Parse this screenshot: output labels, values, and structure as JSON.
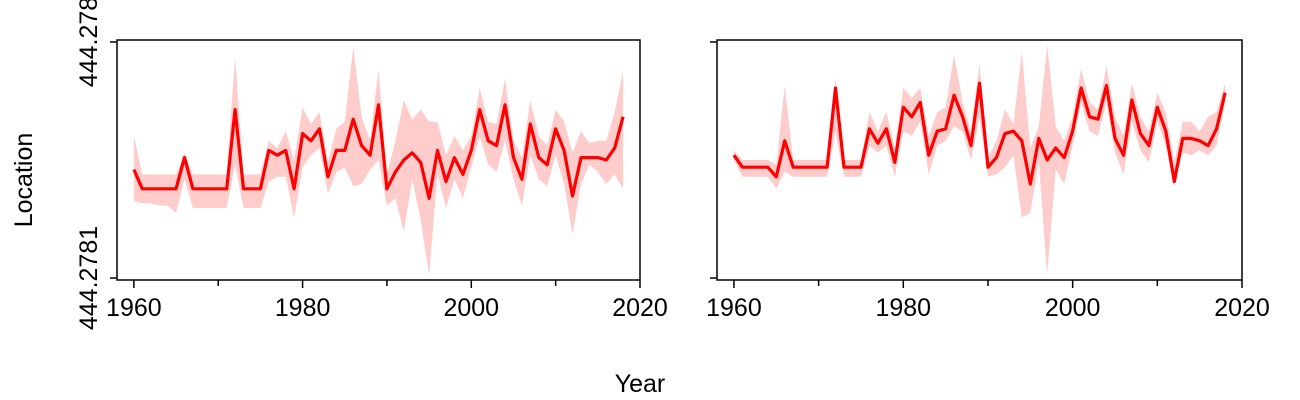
{
  "chart_data": {
    "type": "line",
    "xlabel": "Year",
    "ylabel": "Location",
    "x_ticks": [
      "1960",
      "1980",
      "2000",
      "2020"
    ],
    "y_ticks": [
      "444.2781",
      "444.278"
    ],
    "xlim": [
      1958,
      2020
    ],
    "ylim": [
      0,
      1
    ],
    "grid": false,
    "colors": {
      "line": "#ff0000",
      "band": "#ffcccc"
    },
    "panels": [
      {
        "x": [
          1960,
          1961,
          1962,
          1963,
          1964,
          1965,
          1966,
          1967,
          1968,
          1969,
          1970,
          1971,
          1972,
          1973,
          1974,
          1975,
          1976,
          1977,
          1978,
          1979,
          1980,
          1981,
          1982,
          1983,
          1984,
          1985,
          1986,
          1987,
          1988,
          1989,
          1990,
          1991,
          1992,
          1993,
          1994,
          1995,
          1996,
          1997,
          1998,
          1999,
          2000,
          2001,
          2002,
          2003,
          2004,
          2005,
          2006,
          2007,
          2008,
          2009,
          2010,
          2011,
          2012,
          2013,
          2014,
          2015,
          2016,
          2017,
          2018
        ],
        "y": [
          0.46,
          0.38,
          0.38,
          0.38,
          0.38,
          0.38,
          0.51,
          0.38,
          0.38,
          0.38,
          0.38,
          0.38,
          0.71,
          0.38,
          0.38,
          0.38,
          0.54,
          0.52,
          0.54,
          0.38,
          0.61,
          0.58,
          0.63,
          0.43,
          0.54,
          0.54,
          0.67,
          0.56,
          0.52,
          0.73,
          0.38,
          0.45,
          0.5,
          0.53,
          0.49,
          0.34,
          0.54,
          0.41,
          0.51,
          0.44,
          0.54,
          0.71,
          0.58,
          0.56,
          0.73,
          0.51,
          0.42,
          0.65,
          0.51,
          0.48,
          0.63,
          0.54,
          0.35,
          0.51,
          0.51,
          0.51,
          0.5,
          0.55,
          0.68
        ],
        "lower": [
          0.33,
          0.32,
          0.32,
          0.31,
          0.31,
          0.28,
          0.42,
          0.3,
          0.3,
          0.3,
          0.3,
          0.3,
          0.48,
          0.3,
          0.3,
          0.3,
          0.41,
          0.43,
          0.43,
          0.26,
          0.47,
          0.52,
          0.55,
          0.36,
          0.45,
          0.47,
          0.39,
          0.4,
          0.46,
          0.5,
          0.31,
          0.34,
          0.2,
          0.42,
          0.25,
          0.02,
          0.44,
          0.3,
          0.42,
          0.34,
          0.47,
          0.6,
          0.48,
          0.45,
          0.58,
          0.42,
          0.31,
          0.52,
          0.42,
          0.39,
          0.52,
          0.4,
          0.19,
          0.4,
          0.48,
          0.45,
          0.4,
          0.44,
          0.38
        ],
        "upper": [
          0.6,
          0.44,
          0.44,
          0.44,
          0.44,
          0.44,
          0.53,
          0.44,
          0.44,
          0.44,
          0.44,
          0.44,
          0.93,
          0.44,
          0.44,
          0.44,
          0.58,
          0.55,
          0.62,
          0.5,
          0.72,
          0.65,
          0.7,
          0.49,
          0.63,
          0.66,
          0.97,
          0.68,
          0.58,
          0.88,
          0.44,
          0.58,
          0.75,
          0.67,
          0.71,
          0.66,
          0.66,
          0.52,
          0.6,
          0.54,
          0.6,
          0.8,
          0.66,
          0.65,
          0.84,
          0.58,
          0.51,
          0.75,
          0.6,
          0.56,
          0.71,
          0.66,
          0.53,
          0.62,
          0.57,
          0.58,
          0.58,
          0.7,
          0.87
        ]
      },
      {
        "x": [
          1960,
          1961,
          1962,
          1963,
          1964,
          1965,
          1966,
          1967,
          1968,
          1969,
          1970,
          1971,
          1972,
          1973,
          1974,
          1975,
          1976,
          1977,
          1978,
          1979,
          1980,
          1981,
          1982,
          1983,
          1984,
          1985,
          1986,
          1987,
          1988,
          1989,
          1990,
          1991,
          1992,
          1993,
          1994,
          1995,
          1996,
          1997,
          1998,
          1999,
          2000,
          2001,
          2002,
          2003,
          2004,
          2005,
          2006,
          2007,
          2008,
          2009,
          2010,
          2011,
          2012,
          2013,
          2014,
          2015,
          2016,
          2017,
          2018
        ],
        "y": [
          0.52,
          0.47,
          0.47,
          0.47,
          0.47,
          0.43,
          0.58,
          0.47,
          0.47,
          0.47,
          0.47,
          0.47,
          0.8,
          0.47,
          0.47,
          0.47,
          0.63,
          0.57,
          0.63,
          0.49,
          0.72,
          0.68,
          0.74,
          0.52,
          0.62,
          0.63,
          0.77,
          0.68,
          0.56,
          0.82,
          0.47,
          0.51,
          0.61,
          0.62,
          0.58,
          0.4,
          0.59,
          0.5,
          0.55,
          0.51,
          0.62,
          0.8,
          0.68,
          0.67,
          0.81,
          0.59,
          0.52,
          0.75,
          0.61,
          0.56,
          0.72,
          0.62,
          0.41,
          0.59,
          0.59,
          0.58,
          0.56,
          0.63,
          0.78
        ],
        "lower": [
          0.5,
          0.43,
          0.43,
          0.43,
          0.43,
          0.38,
          0.45,
          0.43,
          0.43,
          0.43,
          0.43,
          0.43,
          0.62,
          0.43,
          0.43,
          0.43,
          0.56,
          0.53,
          0.56,
          0.43,
          0.62,
          0.6,
          0.66,
          0.44,
          0.56,
          0.58,
          0.64,
          0.62,
          0.5,
          0.68,
          0.43,
          0.44,
          0.47,
          0.52,
          0.26,
          0.28,
          0.49,
          0.02,
          0.46,
          0.4,
          0.56,
          0.74,
          0.62,
          0.6,
          0.74,
          0.53,
          0.44,
          0.66,
          0.54,
          0.49,
          0.66,
          0.56,
          0.4,
          0.53,
          0.52,
          0.54,
          0.52,
          0.56,
          0.74
        ],
        "upper": [
          0.54,
          0.5,
          0.5,
          0.5,
          0.5,
          0.48,
          0.81,
          0.5,
          0.5,
          0.5,
          0.5,
          0.5,
          0.84,
          0.5,
          0.5,
          0.5,
          0.7,
          0.62,
          0.7,
          0.55,
          0.8,
          0.76,
          0.8,
          0.6,
          0.7,
          0.72,
          0.94,
          0.74,
          0.62,
          0.9,
          0.51,
          0.58,
          0.71,
          0.65,
          0.95,
          0.55,
          0.64,
          0.98,
          0.64,
          0.58,
          0.68,
          0.88,
          0.74,
          0.71,
          0.89,
          0.68,
          0.6,
          0.82,
          0.68,
          0.62,
          0.78,
          0.7,
          0.49,
          0.66,
          0.66,
          0.62,
          0.68,
          0.7,
          0.82
        ]
      }
    ]
  }
}
